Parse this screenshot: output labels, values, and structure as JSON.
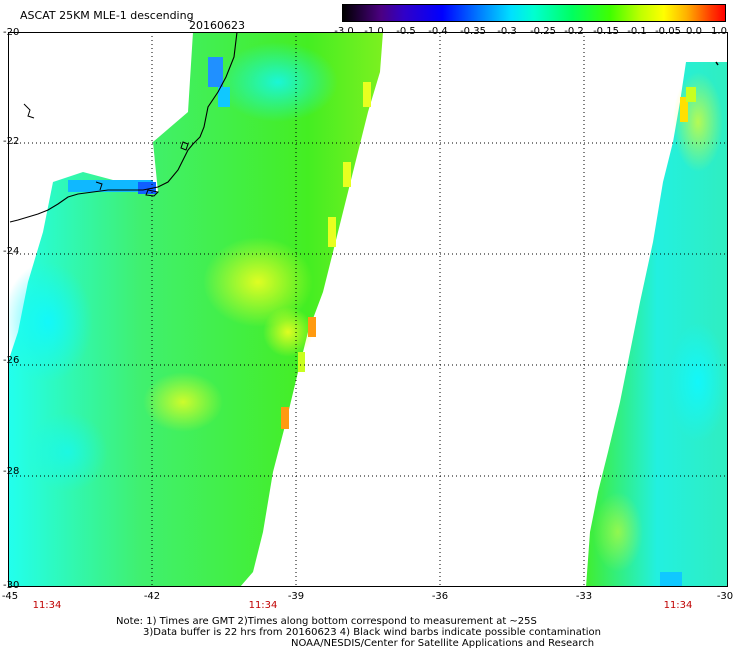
{
  "title": "ASCAT 25KM MLE-1 descending",
  "date": "20160623",
  "colorbar": {
    "labels": [
      "-3.0",
      "-1.0",
      "-0.5",
      "-0.4",
      "-0.35",
      "-0.3",
      "-0.25",
      "-0.2",
      "-0.15",
      "-0.1",
      "-0.05",
      "0.0",
      "1.0"
    ]
  },
  "map": {
    "lat_labels": [
      "-20",
      "-22",
      "-24",
      "-26",
      "-28",
      "-30"
    ],
    "lon_labels": [
      "-45",
      "-42",
      "-39",
      "-36",
      "-33",
      "-30"
    ],
    "time_labels": [
      "11:34",
      "11:34",
      "11:34"
    ]
  },
  "notes": {
    "line1": "Note: 1) Times are GMT 2)Times along bottom correspond to measurement at ~25S",
    "line2": "3)Data buffer is 22 hrs from 20160623 4) Black wind barbs indicate possible contamination",
    "line3": "NOAA/NESDIS/Center for Satellite Applications and Research"
  },
  "colors": {
    "swath_green": "#33ee33",
    "swath_cyan": "#22ffee",
    "swath_yellow": "#e8ff20",
    "swath_orange": "#ff9a10",
    "gridline": "#000000",
    "time_label": "#c00000"
  }
}
